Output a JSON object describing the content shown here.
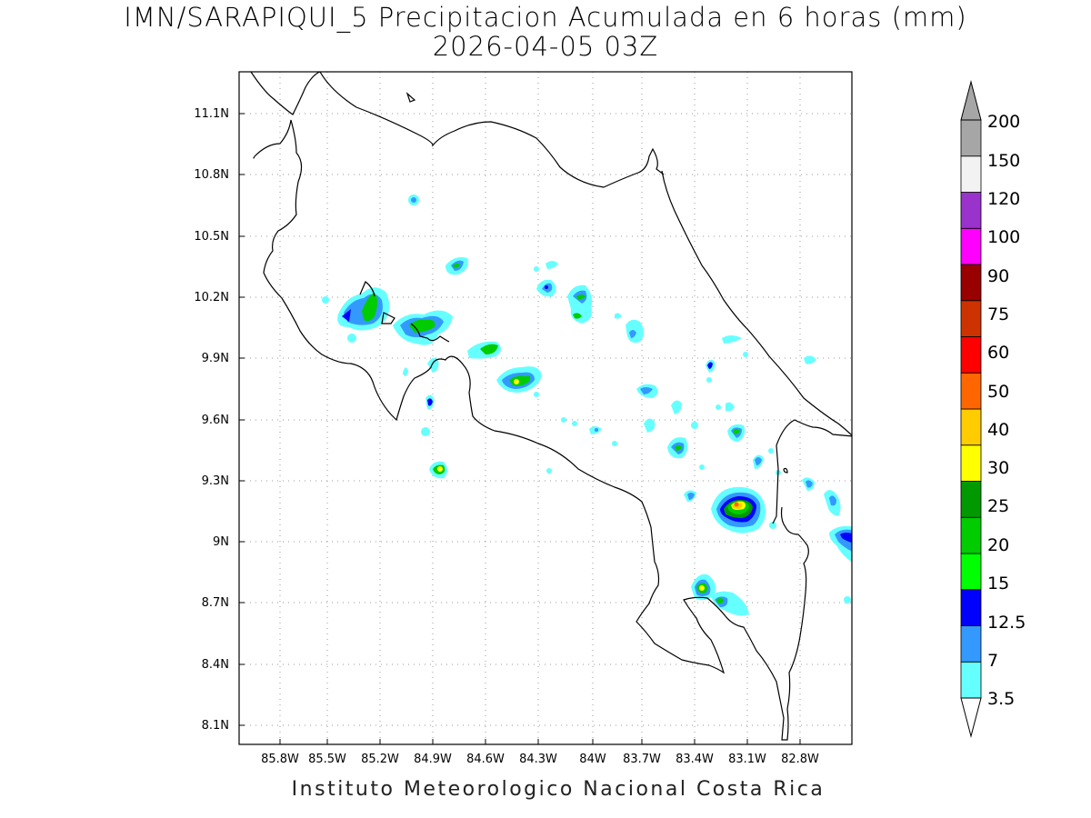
{
  "title": {
    "line1": "IMN/SARAPIQUI_5 Precipitacion Acumulada en 6 horas (mm)",
    "line2": "2026-04-05 03Z"
  },
  "footer": "Instituto Meteorologico Nacional Costa Rica",
  "map": {
    "lon_range": [
      -86.05,
      -82.6
    ],
    "lat_range": [
      8.0,
      11.3
    ],
    "x_ticks": [
      "85.8W",
      "85.5W",
      "85.2W",
      "84.9W",
      "84.6W",
      "84.3W",
      "84W",
      "83.7W",
      "83.4W",
      "83.1W",
      "82.8W"
    ],
    "y_ticks": [
      "11.1N",
      "10.8N",
      "10.5N",
      "10.2N",
      "9.9N",
      "9.6N",
      "9.3N",
      "9N",
      "8.7N",
      "8.4N",
      "8.1N"
    ],
    "grid": "dotted"
  },
  "colorbar": {
    "levels": [
      "3.5",
      "7",
      "12.5",
      "15",
      "20",
      "25",
      "30",
      "40",
      "50",
      "60",
      "75",
      "90",
      "100",
      "120",
      "150",
      "200"
    ],
    "colors": [
      "#66ffff",
      "#3399ff",
      "#0000ff",
      "#00ff00",
      "#00cc00",
      "#009900",
      "#ffff00",
      "#ffcc00",
      "#ff6600",
      "#ff0000",
      "#cc3300",
      "#990000",
      "#ff00ff",
      "#9933cc",
      "#f2f2f2",
      "#a6a6a6"
    ]
  }
}
